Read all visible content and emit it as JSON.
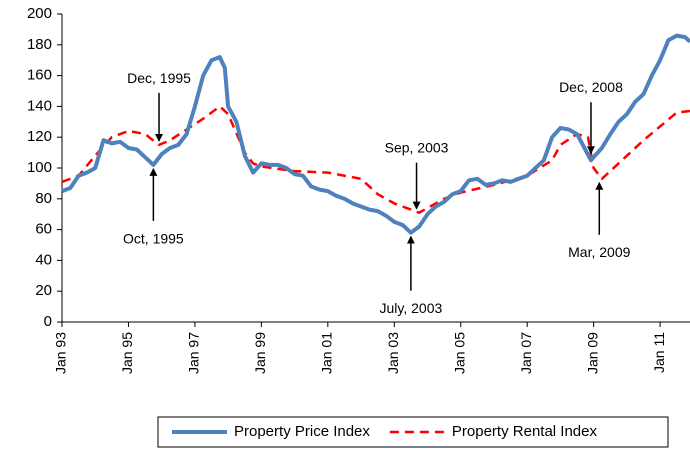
{
  "chart_data": {
    "type": "line",
    "xlim": [
      1993,
      2011.9
    ],
    "ylim": [
      0,
      200
    ],
    "yticks": [
      0,
      20,
      40,
      60,
      80,
      100,
      120,
      140,
      160,
      180,
      200
    ],
    "xticks": [
      {
        "value": 1993,
        "label": "Jan 93"
      },
      {
        "value": 1995,
        "label": "Jan 95"
      },
      {
        "value": 1997,
        "label": "Jan 97"
      },
      {
        "value": 1999,
        "label": "Jan 99"
      },
      {
        "value": 2001,
        "label": "Jan 01"
      },
      {
        "value": 2003,
        "label": "Jan 03"
      },
      {
        "value": 2005,
        "label": "Jan 05"
      },
      {
        "value": 2007,
        "label": "Jan 07"
      },
      {
        "value": 2009,
        "label": "Jan 09"
      },
      {
        "value": 2011,
        "label": "Jan 11"
      }
    ],
    "series": [
      {
        "name": "Property Price Index",
        "color": "#4f81bd",
        "dash": false,
        "x": [
          1993.0,
          1993.25,
          1993.5,
          1993.75,
          1994.0,
          1994.25,
          1994.5,
          1994.75,
          1995.0,
          1995.25,
          1995.5,
          1995.75,
          1996.0,
          1996.25,
          1996.5,
          1996.75,
          1997.0,
          1997.25,
          1997.5,
          1997.75,
          1997.9,
          1998.0,
          1998.25,
          1998.5,
          1998.75,
          1999.0,
          1999.25,
          1999.5,
          1999.75,
          2000.0,
          2000.25,
          2000.5,
          2000.75,
          2001.0,
          2001.25,
          2001.5,
          2001.75,
          2002.0,
          2002.25,
          2002.5,
          2002.75,
          2003.0,
          2003.25,
          2003.5,
          2003.75,
          2004.0,
          2004.25,
          2004.5,
          2004.75,
          2005.0,
          2005.25,
          2005.5,
          2005.75,
          2006.0,
          2006.25,
          2006.5,
          2006.75,
          2007.0,
          2007.25,
          2007.5,
          2007.75,
          2008.0,
          2008.25,
          2008.5,
          2008.75,
          2008.92,
          2009.0,
          2009.25,
          2009.5,
          2009.75,
          2010.0,
          2010.25,
          2010.5,
          2010.75,
          2011.0,
          2011.25,
          2011.5,
          2011.75,
          2011.9
        ],
        "values": [
          85,
          87,
          95,
          97,
          100,
          118,
          116,
          117,
          113,
          112,
          107,
          102,
          109,
          113,
          115,
          122,
          140,
          160,
          170,
          172,
          165,
          140,
          130,
          108,
          97,
          103,
          102,
          102,
          100,
          96,
          95,
          88,
          86,
          85,
          82,
          80,
          77,
          75,
          73,
          72,
          69,
          65,
          63,
          58,
          62,
          70,
          75,
          78,
          83,
          85,
          92,
          93,
          89,
          90,
          92,
          91,
          93,
          95,
          100,
          105,
          120,
          126,
          125,
          122,
          112,
          105,
          107,
          113,
          122,
          130,
          135,
          143,
          148,
          160,
          170,
          183,
          186,
          185,
          182
        ]
      },
      {
        "name": "Property Rental Index",
        "color": "#ff0000",
        "dash": true,
        "x": [
          1993.0,
          1993.5,
          1994.0,
          1994.5,
          1995.0,
          1995.5,
          1995.92,
          1996.25,
          1996.75,
          1997.25,
          1997.75,
          1998.0,
          1998.5,
          1998.75,
          1999.0,
          2000.0,
          2001.0,
          2002.0,
          2002.5,
          2003.0,
          2003.5,
          2003.75,
          2004.0,
          2004.5,
          2005.0,
          2006.0,
          2007.0,
          2007.75,
          2008.0,
          2008.5,
          2008.83,
          2009.0,
          2009.25,
          2009.5,
          2010.0,
          2010.5,
          2011.0,
          2011.5,
          2011.9
        ],
        "values": [
          91,
          95,
          108,
          120,
          124,
          122,
          115,
          118,
          125,
          132,
          140,
          135,
          110,
          103,
          101,
          98,
          97,
          93,
          83,
          77,
          73,
          71,
          74,
          80,
          84,
          89,
          95,
          105,
          115,
          122,
          120,
          100,
          93,
          98,
          108,
          118,
          127,
          136,
          137
        ]
      }
    ],
    "annotations": [
      {
        "text": "Dec, 1995",
        "color": "#ff00ff",
        "x": 1995.92,
        "y": 115
      },
      {
        "text": "Oct, 1995",
        "color": "#000000",
        "x": 1995.75,
        "y": 102
      },
      {
        "text": "Sep, 2003",
        "color": "#ff00ff",
        "x": 2003.67,
        "y": 71
      },
      {
        "text": "July, 2003",
        "color": "#000000",
        "x": 2003.5,
        "y": 58
      },
      {
        "text": "Dec, 2008",
        "color": "#000000",
        "x": 2008.92,
        "y": 107
      },
      {
        "text": "Mar, 2009",
        "color": "#ff00ff",
        "x": 2009.17,
        "y": 93
      }
    ],
    "legend": "bottom"
  }
}
